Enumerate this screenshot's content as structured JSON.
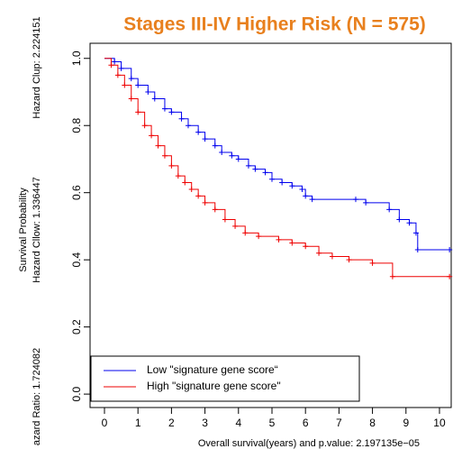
{
  "chart_data": {
    "type": "survival",
    "title": "Stages III-IV Higher Risk (N = 575)",
    "ylabel": "Survival Probability",
    "annotations": [
      "azard Ratio: 1.724082",
      "Hazard Cllow: 1.336447",
      "Hazard Clup: 2.224151"
    ],
    "xlabel": "Overall survival(years) and p.value:  2.197135e−05",
    "xlim": [
      -0.43,
      10.35
    ],
    "ylim": [
      -0.04,
      1.045
    ],
    "xticks": [
      0,
      1,
      2,
      3,
      4,
      5,
      6,
      7,
      8,
      9,
      10
    ],
    "yticks": [
      {
        "value": 0,
        "label": "0.0"
      },
      0.2,
      0.4,
      0.6,
      0.8,
      {
        "value": 1,
        "label": "1.0"
      }
    ],
    "legend": "bottomleft",
    "series": [
      {
        "name": "Low \"signature gene score“",
        "color": "#0000ee",
        "x": [
          0,
          0.3,
          0.5,
          0.8,
          1,
          1.3,
          1.5,
          1.8,
          2,
          2.3,
          2.5,
          2.8,
          3,
          3.3,
          3.5,
          3.8,
          4,
          4.3,
          4.5,
          4.8,
          5,
          5.3,
          5.6,
          5.9,
          6,
          6.2,
          7.5,
          7.8,
          8.5,
          8.8,
          9.1,
          9.3,
          9.35,
          10.3
        ],
        "values": [
          1,
          0.99,
          0.97,
          0.94,
          0.92,
          0.9,
          0.88,
          0.85,
          0.84,
          0.82,
          0.8,
          0.78,
          0.76,
          0.74,
          0.72,
          0.71,
          0.7,
          0.68,
          0.67,
          0.66,
          0.64,
          0.63,
          0.62,
          0.61,
          0.59,
          0.58,
          0.58,
          0.57,
          0.55,
          0.52,
          0.51,
          0.48,
          0.43,
          0.43
        ]
      },
      {
        "name": "High \"signature gene score\"",
        "color": "#ee0000",
        "x": [
          0,
          0.2,
          0.4,
          0.6,
          0.8,
          1,
          1.2,
          1.4,
          1.6,
          1.8,
          2,
          2.2,
          2.4,
          2.6,
          2.8,
          3,
          3.3,
          3.6,
          3.9,
          4.2,
          4.6,
          5.2,
          5.6,
          6,
          6.4,
          6.8,
          7.3,
          8,
          8.6,
          10.3
        ],
        "values": [
          1,
          0.98,
          0.95,
          0.92,
          0.88,
          0.84,
          0.8,
          0.77,
          0.74,
          0.71,
          0.68,
          0.65,
          0.63,
          0.61,
          0.59,
          0.57,
          0.55,
          0.52,
          0.5,
          0.48,
          0.47,
          0.46,
          0.45,
          0.44,
          0.42,
          0.41,
          0.4,
          0.39,
          0.35,
          0.35
        ]
      }
    ]
  }
}
